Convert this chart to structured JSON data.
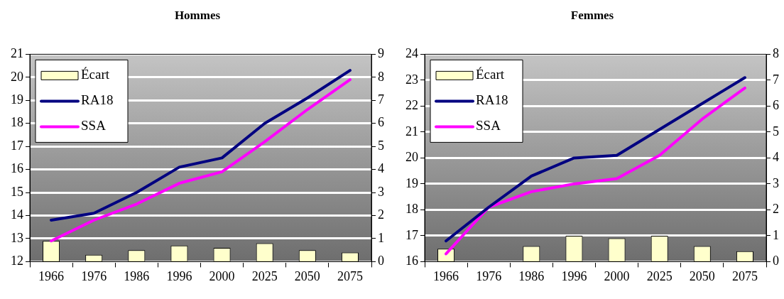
{
  "chart_data": [
    {
      "type": "line",
      "title": "Hommes",
      "categories": [
        "1966",
        "1976",
        "1986",
        "1996",
        "2000",
        "2025",
        "2050",
        "2075"
      ],
      "series": [
        {
          "name": "Écart",
          "type": "bar",
          "axis": "y2",
          "color": "#ffffcc",
          "values": [
            0.9,
            0.3,
            0.5,
            0.7,
            0.6,
            0.8,
            0.5,
            0.4
          ]
        },
        {
          "name": "RA18",
          "color": "#000080",
          "values": [
            13.8,
            14.1,
            15.0,
            16.1,
            16.5,
            18.0,
            19.1,
            20.3
          ]
        },
        {
          "name": "SSA",
          "color": "#ff00ff",
          "values": [
            12.9,
            13.8,
            14.5,
            15.4,
            15.9,
            17.2,
            18.6,
            19.9
          ]
        }
      ],
      "ylim": [
        12,
        21
      ],
      "yticks": [
        12,
        13,
        14,
        15,
        16,
        17,
        18,
        19,
        20,
        21
      ],
      "y2lim": [
        0,
        9
      ],
      "y2ticks": [
        0,
        1,
        2,
        3,
        4,
        5,
        6,
        7,
        8,
        9
      ],
      "grid": "y",
      "legend": "top left",
      "marker": "none",
      "line_style": "solid"
    },
    {
      "type": "line",
      "title": "Femmes",
      "categories": [
        "1966",
        "1976",
        "1986",
        "1996",
        "2000",
        "2025",
        "2050",
        "2075"
      ],
      "series": [
        {
          "name": "Écart",
          "type": "bar",
          "axis": "y2",
          "color": "#ffffcc",
          "values": [
            0.5,
            0,
            0.6,
            1.0,
            0.9,
            1.0,
            0.6,
            0.4
          ]
        },
        {
          "name": "RA18",
          "color": "#000080",
          "values": [
            16.8,
            18.1,
            19.3,
            20.0,
            20.1,
            21.1,
            22.1,
            23.1
          ]
        },
        {
          "name": "SSA",
          "color": "#ff00ff",
          "values": [
            16.3,
            18.1,
            18.7,
            19.0,
            19.2,
            20.1,
            21.5,
            22.7
          ]
        }
      ],
      "ylim": [
        16,
        24
      ],
      "yticks": [
        16,
        17,
        18,
        19,
        20,
        21,
        22,
        23,
        24
      ],
      "y2lim": [
        0,
        8
      ],
      "y2ticks": [
        0,
        1,
        2,
        3,
        4,
        5,
        6,
        7,
        8
      ],
      "grid": "y",
      "legend": "top left",
      "marker": "none",
      "line_style": "solid"
    }
  ]
}
